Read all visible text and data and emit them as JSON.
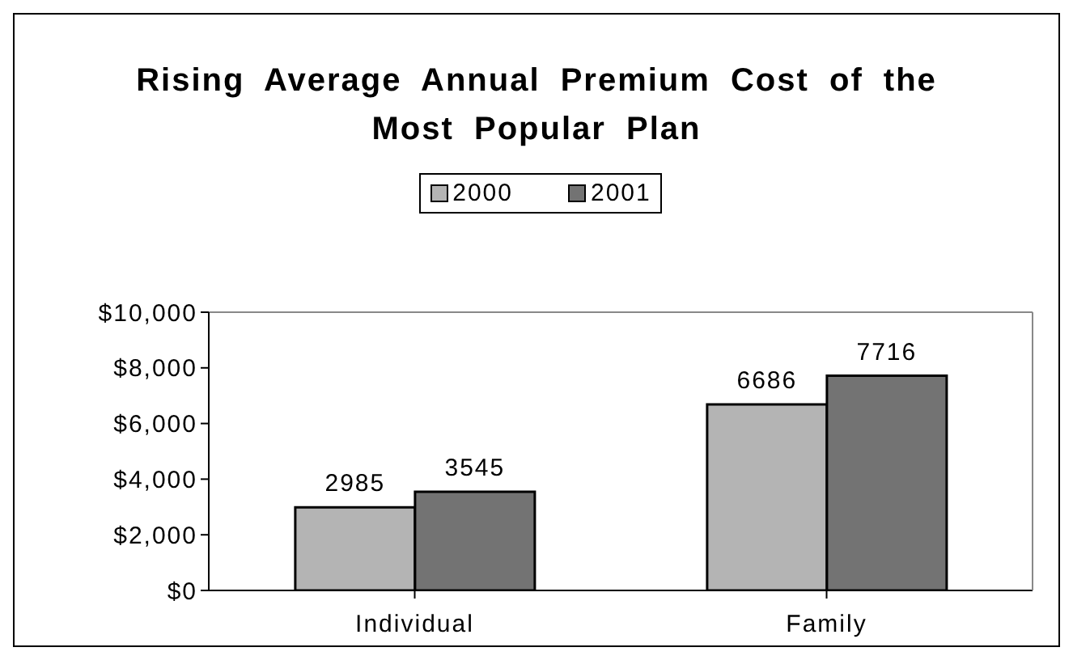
{
  "chart_data": {
    "type": "bar",
    "title": "Rising Average Annual Premium Cost of the Most Popular Plan",
    "categories": [
      "Individual",
      "Family"
    ],
    "series": [
      {
        "name": "2000",
        "color": "#b4b4b4",
        "values": [
          2985,
          6686
        ]
      },
      {
        "name": "2001",
        "color": "#737373",
        "values": [
          3545,
          7716
        ]
      }
    ],
    "ylim": [
      0,
      10000
    ],
    "yticks": [
      {
        "value": 0,
        "label": "$0"
      },
      {
        "value": 2000,
        "label": "$2,000"
      },
      {
        "value": 4000,
        "label": "$4,000"
      },
      {
        "value": 6000,
        "label": "$6,000"
      },
      {
        "value": 8000,
        "label": "$8,000"
      },
      {
        "value": 10000,
        "label": "$10,000"
      }
    ],
    "data_labels": true,
    "grid": false,
    "legend": "top"
  }
}
